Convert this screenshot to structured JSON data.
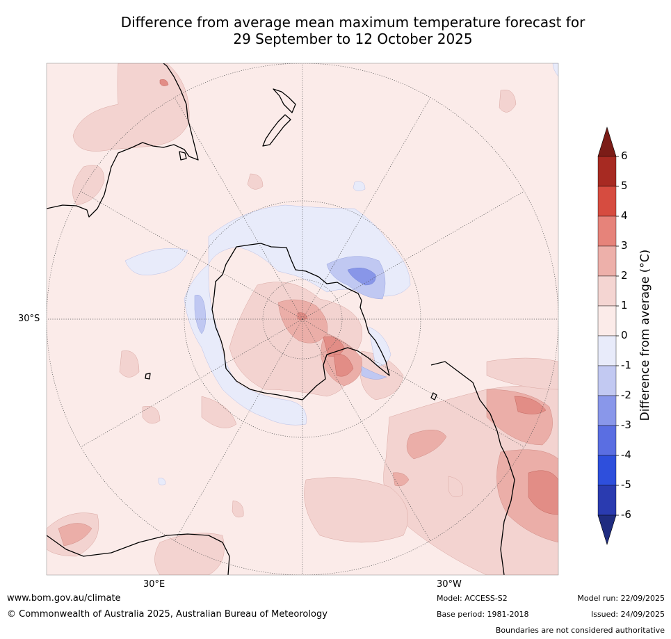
{
  "title": {
    "line1": "Difference from average mean maximum temperature forecast for",
    "line2": "29 September to 12 October 2025"
  },
  "map": {
    "projection": "south-polar-stereographic",
    "lat_ring_label": "30°S",
    "lon_labels": {
      "left": "30°E",
      "right": "30°W"
    },
    "colors": {
      "background_anomaly_0_1": "#fbebe9",
      "anomaly_1_2": "#f3d3d0",
      "anomaly_2_3": "#ebaea8",
      "anomaly_3_4": "#e28d86",
      "anomaly_neg1_0": "#e8ebfa",
      "anomaly_neg2_neg1": "#c0c8f2",
      "anomaly_neg3_neg2": "#8896e8",
      "coastline": "#000000",
      "graticule": "#555555"
    }
  },
  "colorbar": {
    "title": "Difference from average (°C)",
    "ticks": [
      "6",
      "5",
      "4",
      "3",
      "2",
      "1",
      "0",
      "-1",
      "-2",
      "-3",
      "-4",
      "-5",
      "-6"
    ],
    "levels": [
      {
        "range": "above 6",
        "color": "#7b1c17"
      },
      {
        "range": "5 to 6",
        "color": "#a72a22"
      },
      {
        "range": "4 to 5",
        "color": "#d64c40"
      },
      {
        "range": "3 to 4",
        "color": "#e6837a"
      },
      {
        "range": "2 to 3",
        "color": "#edb0aa"
      },
      {
        "range": "1 to 2",
        "color": "#f4d5d2"
      },
      {
        "range": "0 to 1",
        "color": "#fbebe9"
      },
      {
        "range": "-1 to 0",
        "color": "#e8ebfa"
      },
      {
        "range": "-2 to -1",
        "color": "#c2c9f2"
      },
      {
        "range": "-3 to -2",
        "color": "#8997ea"
      },
      {
        "range": "-4 to -3",
        "color": "#5a6ee2"
      },
      {
        "range": "-5 to -4",
        "color": "#2e4fdc"
      },
      {
        "range": "-6 to -5",
        "color": "#2a3bb0"
      },
      {
        "range": "below -6",
        "color": "#1f2c80"
      }
    ]
  },
  "footer": {
    "website": "www.bom.gov.au/climate",
    "copyright": "© Commonwealth of Australia 2025, Australian Bureau of Meteorology",
    "model": "Model: ACCESS-S2",
    "base_period": "Base period: 1981-2018",
    "model_run": "Model run: 22/09/2025",
    "issued": "Issued: 24/09/2025",
    "disclaimer": "Boundaries are not considered authoritative"
  }
}
